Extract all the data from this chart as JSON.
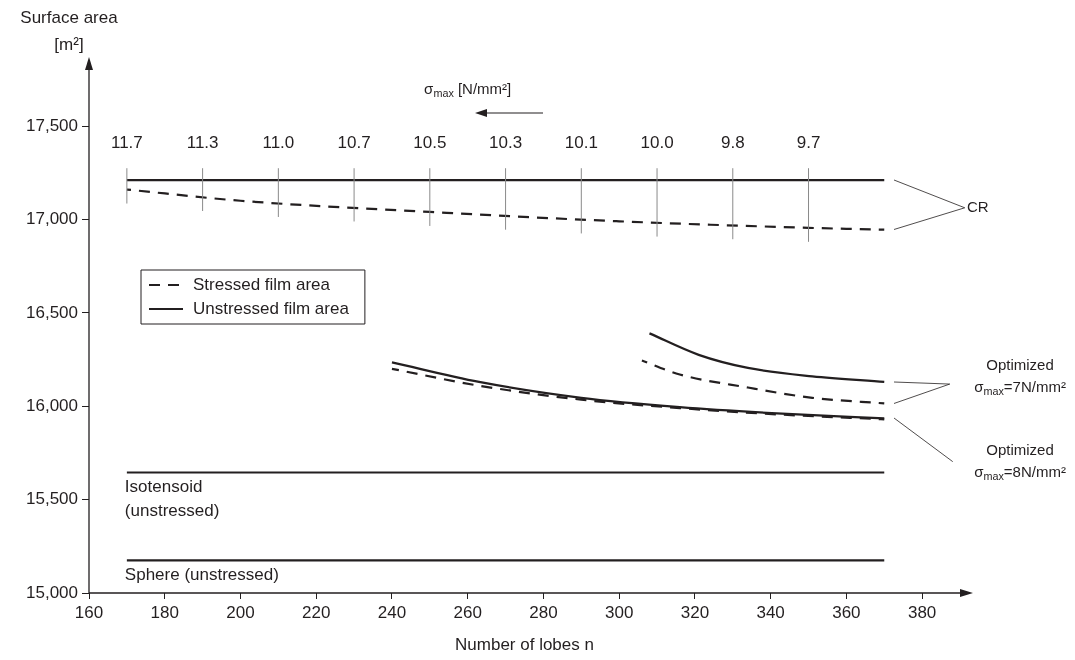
{
  "chart_data": {
    "type": "line",
    "xlabel": "Number of lobes n",
    "ylabel": "Surface area [m²]",
    "x2label": "σ$_{max}$ [N/mm²]",
    "xlim": [
      160,
      390
    ],
    "xticks": [
      160,
      180,
      200,
      220,
      240,
      260,
      280,
      300,
      320,
      340,
      360,
      380
    ],
    "ylim": [
      15000,
      17800
    ],
    "yticks": [
      {
        "value": 15000,
        "label": "15,000"
      },
      {
        "value": 15500,
        "label": "15,500"
      },
      {
        "value": 16000,
        "label": "16,000"
      },
      {
        "value": 16500,
        "label": "16,500"
      },
      {
        "value": 17000,
        "label": "17,000"
      },
      {
        "value": 17500,
        "label": "17,500"
      }
    ],
    "legend": "left",
    "marker": "none",
    "series": [
      {
        "name": "Stressed film area",
        "color": "#231f20",
        "line_style": "dashed",
        "x": [
          170,
          200,
          250,
          300,
          350,
          370
        ],
        "values": [
          17160,
          17100,
          17040,
          16990,
          16955,
          16945
        ]
      },
      {
        "name": "Unstressed film area",
        "color": "#231f20",
        "line_style": "solid",
        "x": [
          170,
          370
        ],
        "values": [
          17210,
          17210
        ]
      },
      {
        "color": "#231f20",
        "line_style": "dashed",
        "x": [
          306,
          316,
          334,
          351,
          370
        ],
        "values": [
          16245,
          16170,
          16100,
          16045,
          16015
        ]
      },
      {
        "color": "#231f20",
        "line_style": "solid",
        "x": [
          308,
          321,
          334,
          351,
          370
        ],
        "values": [
          16390,
          16275,
          16205,
          16160,
          16130
        ]
      },
      {
        "color": "#231f20",
        "line_style": "dashed",
        "x": [
          240,
          263,
          290,
          316,
          343,
          370
        ],
        "values": [
          16200,
          16110,
          16035,
          15990,
          15955,
          15930
        ]
      },
      {
        "color": "#231f20",
        "line_style": "solid",
        "x": [
          240,
          263,
          290,
          316,
          343,
          370
        ],
        "values": [
          16235,
          16130,
          16045,
          15995,
          15960,
          15935
        ]
      }
    ],
    "ref_lines": [
      {
        "axis": "y",
        "value": 15645,
        "label": "Isotensoid (unstressed)",
        "color": "#231f20"
      },
      {
        "axis": "y",
        "value": 15175,
        "label": "Sphere (unstressed)",
        "color": "#231f20"
      }
    ],
    "annotations": [
      "CR",
      "Optimized σ$_{max}$=7N/mm²",
      "Optimized σ$_{max}$=8N/mm²",
      {
        "text": "11.7",
        "x": 170,
        "y": 17210
      },
      {
        "text": "11.3",
        "x": 190,
        "y": 17210
      },
      {
        "text": "11.0",
        "x": 210,
        "y": 17210
      },
      {
        "text": "10.7",
        "x": 230,
        "y": 17210
      },
      {
        "text": "10.5",
        "x": 250,
        "y": 17210
      },
      {
        "text": "10.3",
        "x": 270,
        "y": 17210
      },
      {
        "text": "10.1",
        "x": 290,
        "y": 17210
      },
      {
        "text": "10.0",
        "x": 310,
        "y": 17210
      },
      {
        "text": "9.8",
        "x": 330,
        "y": 17210
      },
      {
        "text": "9.7",
        "x": 350,
        "y": 17210
      }
    ]
  }
}
